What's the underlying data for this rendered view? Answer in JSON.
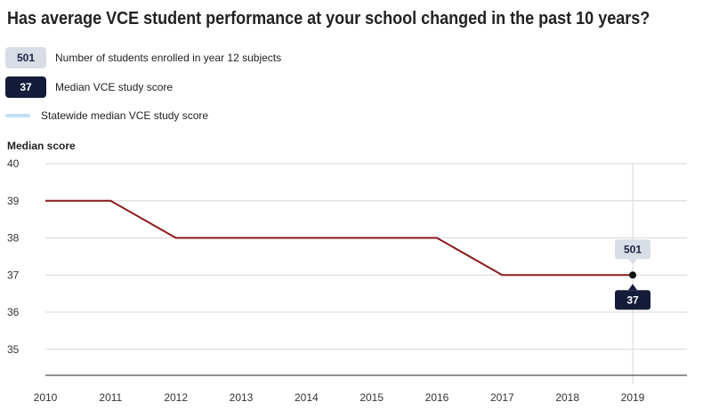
{
  "title": "Has average VCE student performance at your school changed in the past 10 years?",
  "legend": {
    "students": {
      "value": "501",
      "label": "Number of students enrolled in year 12 subjects"
    },
    "median": {
      "value": "37",
      "label": "Median VCE study score"
    },
    "statewide": {
      "label": "Statewide median VCE study score"
    }
  },
  "colors": {
    "line": "#8b1a1a",
    "badge_light": "#d8dde6",
    "badge_dark": "#141c3a",
    "statewide": "#bfe0f2"
  },
  "chart_data": {
    "type": "line",
    "ylabel": "Median score",
    "xlabel": "",
    "x": [
      "2010",
      "2011",
      "2012",
      "2013",
      "2014",
      "2015",
      "2016",
      "2017",
      "2018",
      "2019"
    ],
    "series": [
      {
        "name": "Median VCE study score",
        "values": [
          39,
          39,
          38,
          38,
          38,
          38,
          38,
          37,
          37,
          37
        ]
      }
    ],
    "yticks": [
      35,
      36,
      37,
      38,
      39,
      40
    ],
    "ylim": [
      34.3,
      40
    ],
    "grid": true,
    "highlight": {
      "x": "2019",
      "students": "501",
      "score": "37"
    }
  }
}
